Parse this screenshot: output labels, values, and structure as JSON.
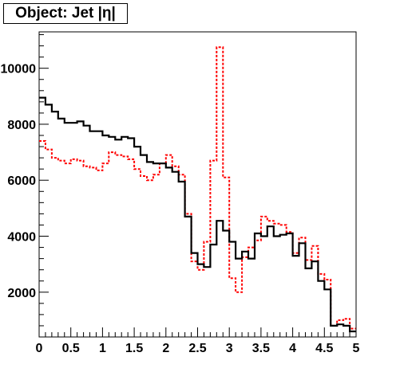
{
  "chart_data": {
    "type": "histogram",
    "title": "Object: Jet |η|",
    "xlabel": "",
    "ylabel": "",
    "xlim": [
      0,
      5
    ],
    "ylim": [
      400,
      11300
    ],
    "x_ticks": [
      "0",
      "0.5",
      "1",
      "1.5",
      "2",
      "2.5",
      "3",
      "3.5",
      "4",
      "4.5",
      "5"
    ],
    "x_tick_values": [
      0,
      0.5,
      1,
      1.5,
      2,
      2.5,
      3,
      3.5,
      4,
      4.5,
      5
    ],
    "y_ticks": [
      "2000",
      "4000",
      "6000",
      "8000",
      "10000"
    ],
    "y_tick_values": [
      2000,
      4000,
      6000,
      8000,
      10000
    ],
    "bin_width": 0.1,
    "grid": false,
    "series": [
      {
        "style": "solid",
        "color": "#000000",
        "values": [
          8950,
          8700,
          8450,
          8200,
          8050,
          8050,
          8100,
          7950,
          7750,
          7750,
          7600,
          7550,
          7450,
          7550,
          7500,
          7200,
          6900,
          6650,
          6600,
          6600,
          6450,
          6300,
          5950,
          4700,
          3400,
          3000,
          2900,
          3700,
          4550,
          4200,
          3800,
          3200,
          3450,
          3200,
          4100,
          4000,
          4350,
          4000,
          4050,
          4100,
          3300,
          3750,
          2850,
          3100,
          2400,
          2100,
          800,
          850,
          800,
          600
        ]
      },
      {
        "style": "dashed",
        "color": "#ff0000",
        "values": [
          7400,
          7100,
          6800,
          6700,
          6600,
          6750,
          6700,
          6500,
          6450,
          6350,
          6600,
          7000,
          6900,
          6850,
          6750,
          6400,
          6150,
          6000,
          6200,
          6600,
          6900,
          6500,
          6200,
          4800,
          3100,
          2800,
          3800,
          6700,
          10750,
          6100,
          2500,
          2000,
          3250,
          3600,
          3850,
          4700,
          4550,
          4450,
          4400,
          4150,
          3400,
          3950,
          3150,
          3650,
          2650,
          2450,
          800,
          1000,
          1050,
          700
        ]
      }
    ]
  }
}
